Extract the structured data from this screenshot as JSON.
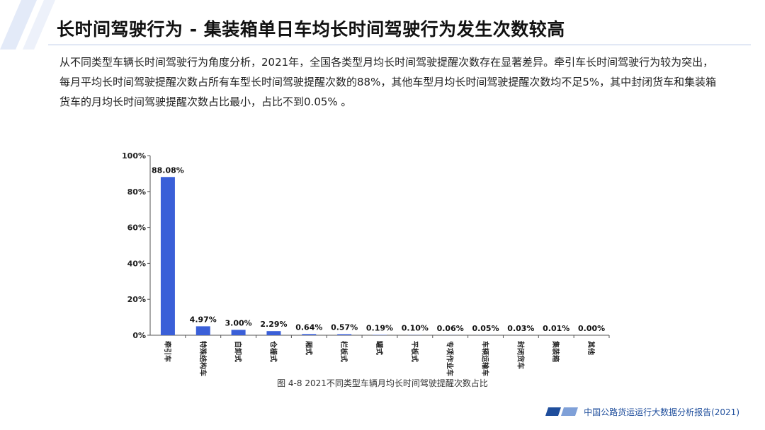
{
  "slide": {
    "title": "长时间驾驶行为 - 集装箱单日车均长时间驾驶行为发生次数较高",
    "intro": "从不同类型车辆长时间驾驶行为角度分析，2021年，全国各类型月均长时间驾驶提醒次数存在显著差异。牵引车长时间驾驶行为较为突出，每月平均长时间驾驶提醒次数占所有车型长时间驾驶提醒次数的88%，其他车型月均长时间驾驶提醒次数均不足5%，其中封闭货车和集装箱货车的月均长时间驾驶提醒次数占比最小，占比不到0.05% 。",
    "footer": "中国公路货运运行大数据分析报告(2021)"
  },
  "colors": {
    "bar": "#3a5fd8",
    "accent": "#1f4e9c",
    "deco_light": "#e3eaf8"
  },
  "chart_data": {
    "type": "bar",
    "title": "",
    "caption": "图 4-8 2021不同类型车辆月均长时间驾驶提醒次数占比",
    "xlabel": "",
    "ylabel": "",
    "categories": [
      "牵引车",
      "特殊结构车",
      "自卸式",
      "仓栅式",
      "厢式",
      "栏板式",
      "罐式",
      "平板式",
      "专项作业车",
      "车辆运输车",
      "封闭货车",
      "集装箱",
      "其他"
    ],
    "values": [
      88.08,
      4.97,
      3.0,
      2.29,
      0.64,
      0.57,
      0.19,
      0.1,
      0.06,
      0.05,
      0.03,
      0.01,
      0.0
    ],
    "value_labels": [
      "88.08%",
      "4.97%",
      "3.00%",
      "2.29%",
      "0.64%",
      "0.57%",
      "0.19%",
      "0.10%",
      "0.06%",
      "0.05%",
      "0.03%",
      "0.01%",
      "0.00%"
    ],
    "yticks": [
      "0%",
      "20%",
      "40%",
      "60%",
      "80%",
      "100%"
    ],
    "ylim": [
      0,
      100
    ],
    "grid": false,
    "legend": "none"
  }
}
